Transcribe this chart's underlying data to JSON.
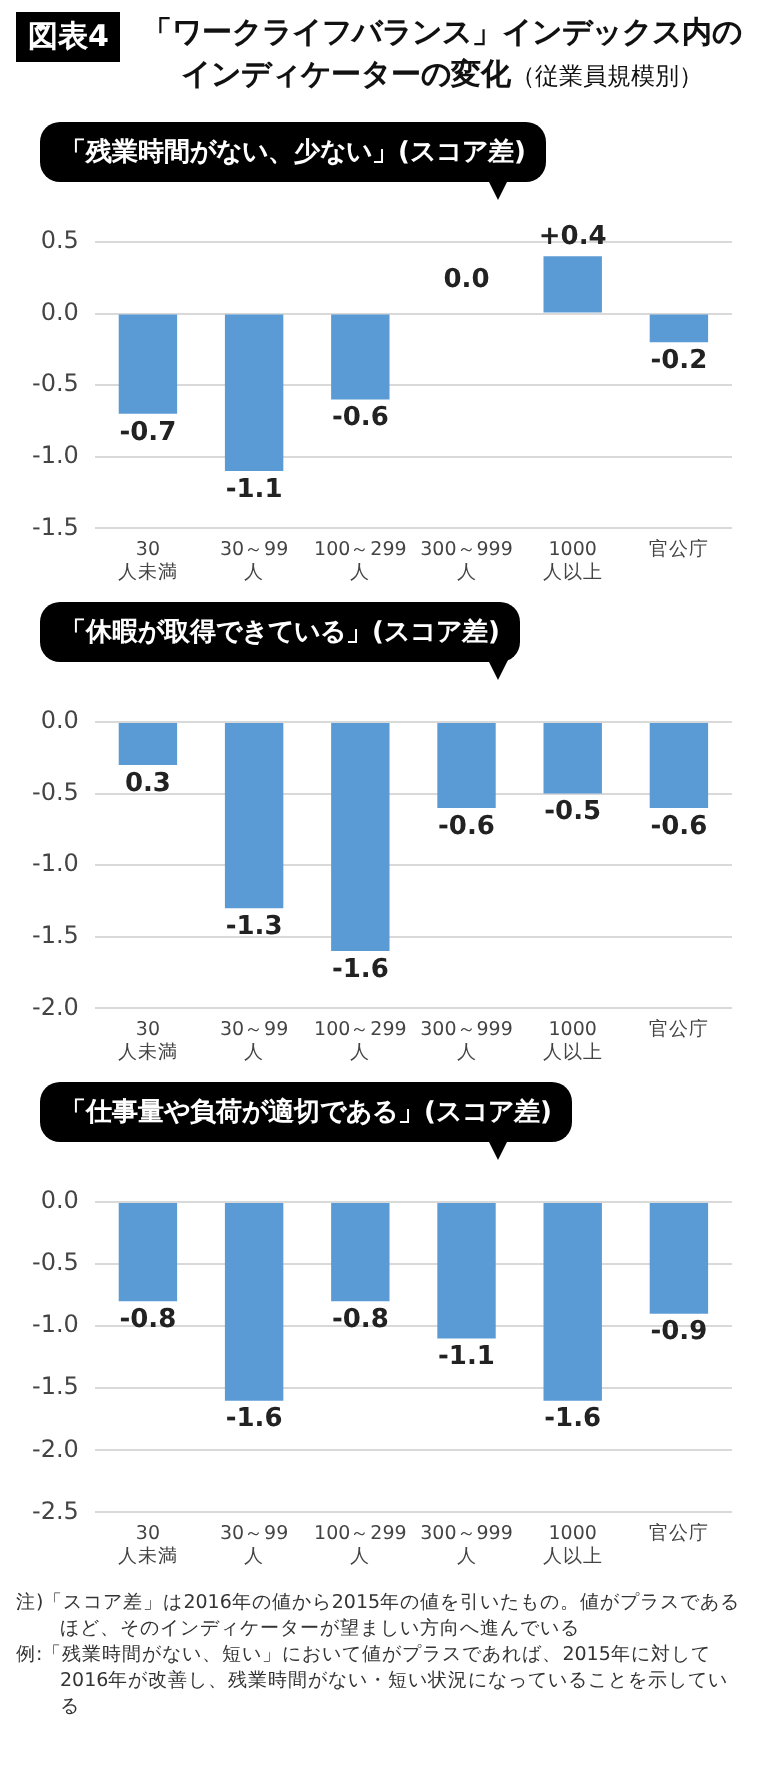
{
  "chart_data": [
    {
      "type": "bar",
      "title": "「ワークライフバランス」インデックス内のインディケーターの変化",
      "subtitle": "「残業時間がない、少ない」(スコア差)",
      "annotations": [
        "図表4",
        "（従業員規模別）"
      ],
      "categories": [
        "30\n人未満",
        "30～99\n人",
        "100～299\n人",
        "300～999\n人",
        "1000\n人以上",
        "官公庁"
      ],
      "values": [
        -0.7,
        -1.1,
        -0.6,
        0.0,
        0.4,
        -0.2
      ],
      "value_labels": [
        "-0.7",
        "-1.1",
        "-0.6",
        "0.0",
        "+0.4",
        "-0.2"
      ],
      "color": "#5b9bd5",
      "ylim": [
        -1.5,
        0.5
      ],
      "yticks": [
        {
          "value": -1.5,
          "label": "-1.5"
        },
        {
          "value": -1,
          "label": "-1.0"
        },
        {
          "value": -0.5,
          "label": "-0.5"
        },
        {
          "value": 0,
          "label": "0.0"
        },
        0.5
      ],
      "grid": "y",
      "legend": false
    },
    {
      "type": "bar",
      "subtitle": "「休暇が取得できている」(スコア差)",
      "categories": [
        "30\n人未満",
        "30～99\n人",
        "100～299\n人",
        "300～999\n人",
        "1000\n人以上",
        "官公庁"
      ],
      "values": [
        -0.3,
        -1.3,
        -1.6,
        -0.6,
        -0.5,
        -0.6
      ],
      "value_labels": [
        null,
        "-1.3",
        "-1.6",
        "-0.6",
        "-0.5",
        "-0.6"
      ],
      "color": "#5b9bd5",
      "annotations": [
        {
          "text": "0.3",
          "x": "30\n人未満",
          "y": -0.3
        }
      ],
      "ylim": [
        -2,
        0
      ],
      "yticks": [
        {
          "value": -2,
          "label": "-2.0"
        },
        -1.5,
        {
          "value": -1,
          "label": "-1.0"
        },
        -0.5,
        {
          "value": 0,
          "label": "0.0"
        }
      ],
      "grid": "y",
      "legend": false
    },
    {
      "type": "bar",
      "subtitle": "「仕事量や負荷が適切である」(スコア差)",
      "categories": [
        "30\n人未満",
        "30～99\n人",
        "100～299\n人",
        "300～999\n人",
        "1000\n人以上",
        "官公庁"
      ],
      "values": [
        -0.8,
        -1.6,
        -0.8,
        -1.1,
        -1.6,
        -0.9
      ],
      "data_labels": true,
      "color": "#5b9bd5",
      "ylim": [
        -2.5,
        0
      ],
      "yticks": [
        -2.5,
        {
          "value": -2,
          "label": "-2.0"
        },
        -1.5,
        {
          "value": -1,
          "label": "-1.0"
        },
        -0.5,
        {
          "value": 0,
          "label": "0.0"
        }
      ],
      "grid": "y",
      "legend": false,
      "annotations": [
        "注)「スコア差」は2016年の値から2015年の値を引いたもの。値がプラスであるほど、そのインディケーターが望ましい方向へ進んでいる",
        "例:「残業時間がない、短い」において値がプラスであれば、2015年に対して2016年が改善し、残業時間がない・短い状況になっていることを示している"
      ]
    }
  ]
}
